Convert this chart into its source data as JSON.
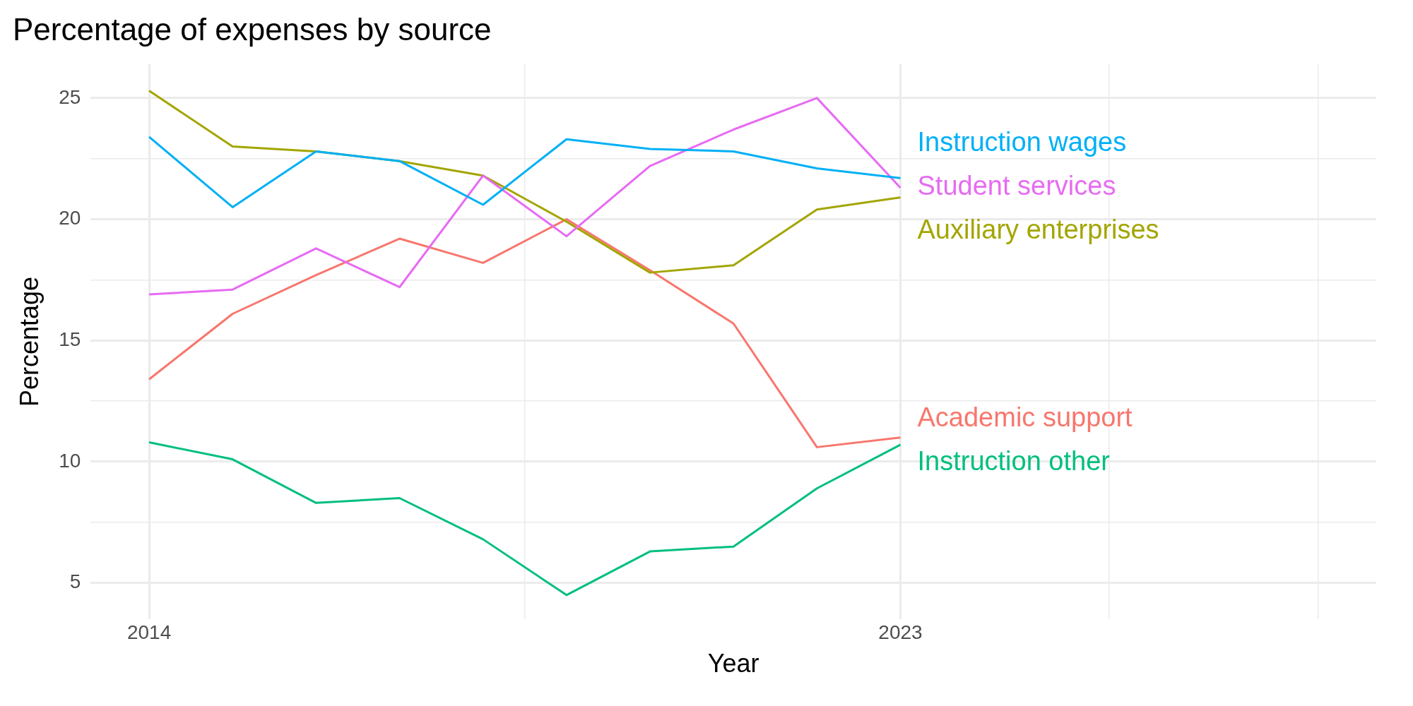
{
  "chart_data": {
    "type": "line",
    "title": "Percentage of expenses by source",
    "xlabel": "Year",
    "ylabel": "Percentage",
    "x": [
      2014,
      2015,
      2016,
      2017,
      2018,
      2019,
      2020,
      2021,
      2022,
      2023
    ],
    "series": [
      {
        "name": "Instruction wages",
        "color": "#00b0f6",
        "values": [
          23.4,
          20.5,
          22.8,
          22.4,
          20.6,
          23.3,
          22.9,
          22.8,
          22.1,
          21.7
        ]
      },
      {
        "name": "Student services",
        "color": "#e76bf3",
        "values": [
          16.9,
          17.1,
          18.8,
          17.2,
          21.8,
          19.3,
          22.2,
          23.7,
          25.0,
          21.3
        ]
      },
      {
        "name": "Auxiliary enterprises",
        "color": "#a3a500",
        "values": [
          25.3,
          23.0,
          22.8,
          22.4,
          21.8,
          19.9,
          17.8,
          18.1,
          20.4,
          20.9
        ]
      },
      {
        "name": "Academic support",
        "color": "#f8766d",
        "values": [
          13.4,
          16.1,
          17.7,
          19.2,
          18.2,
          20.0,
          17.9,
          15.7,
          10.6,
          11.0
        ]
      },
      {
        "name": "Instruction other",
        "color": "#00bf7d",
        "values": [
          10.8,
          10.1,
          8.3,
          8.5,
          6.8,
          4.5,
          6.3,
          6.5,
          8.9,
          10.7
        ]
      }
    ],
    "xlim": [
      2013.3,
      2028.7
    ],
    "xticks": [
      2014,
      {
        "value": 2018.5,
        "label": null
      },
      2023,
      {
        "value": 2025.5,
        "label": null
      },
      {
        "value": 2028,
        "label": null
      }
    ],
    "ylim": [
      3.5,
      26.4
    ],
    "yticks": [
      5,
      {
        "value": 7.5,
        "label": null
      },
      10,
      {
        "value": 12.5,
        "label": null
      },
      15,
      {
        "value": 17.5,
        "label": null
      },
      20,
      {
        "value": 22.5,
        "label": null
      },
      25
    ],
    "grid": true,
    "legend": false,
    "marker": "none",
    "line_style": "solid"
  }
}
